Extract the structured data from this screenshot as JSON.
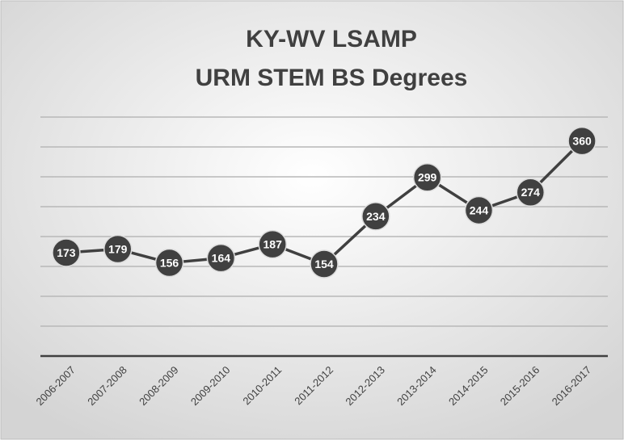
{
  "chart_data": {
    "type": "line",
    "title": [
      "KY-WV LSAMP",
      "URM STEM BS Degrees"
    ],
    "categories": [
      "2006-2007",
      "2007-2008",
      "2008-2009",
      "2009-2010",
      "2010-2011",
      "2011-2012",
      "2012-2013",
      "2013-2014",
      "2014-2015",
      "2015-2016",
      "2016-2017"
    ],
    "values": [
      173,
      179,
      156,
      164,
      187,
      154,
      234,
      299,
      244,
      274,
      360
    ],
    "color": "#404040",
    "ylim": [
      0,
      400
    ],
    "yticks": [
      0,
      50,
      100,
      150,
      200,
      250,
      300,
      350,
      400
    ],
    "grid": true
  }
}
